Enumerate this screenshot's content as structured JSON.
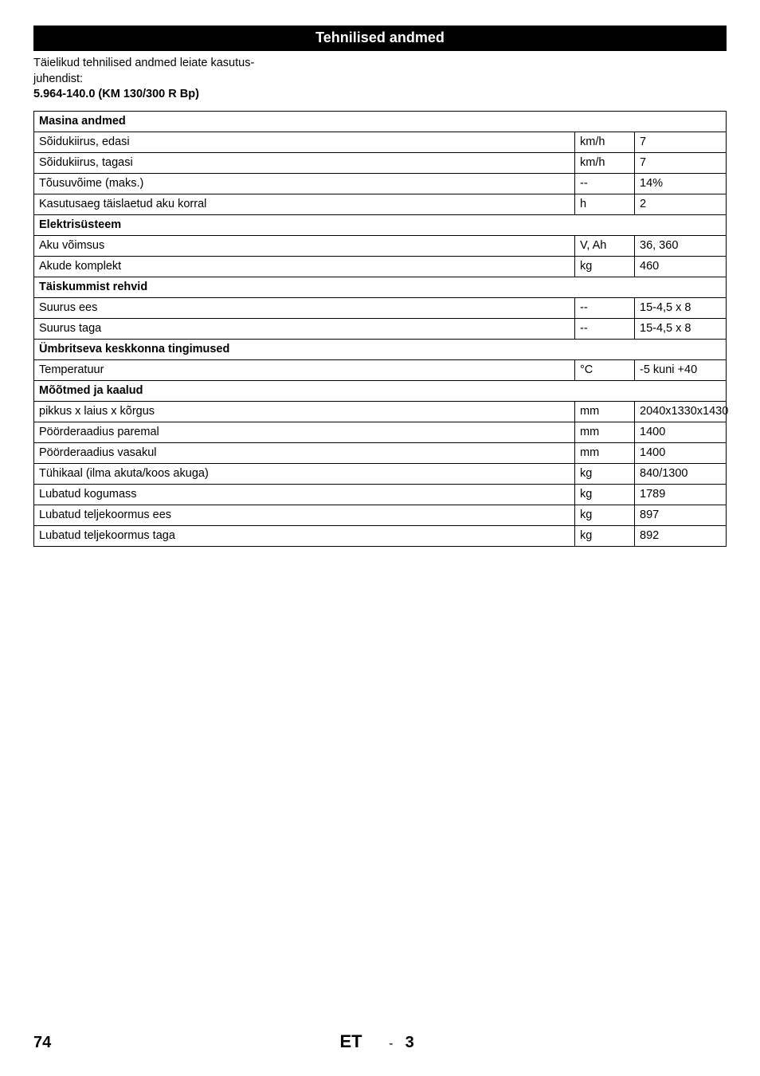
{
  "title": "Tehnilised andmed",
  "intro": {
    "line1": "Täielikud tehnilised andmed leiate kasutus-",
    "line2": "juhendist:",
    "line3_bold": "5.964-140.0 (KM 130/300 R Bp)"
  },
  "table": {
    "rows": [
      {
        "type": "section",
        "label": "Masina andmed"
      },
      {
        "type": "data",
        "label": "Sõidukiirus, edasi",
        "unit": "km/h",
        "value": "7"
      },
      {
        "type": "data",
        "label": "Sõidukiirus, tagasi",
        "unit": "km/h",
        "value": "7"
      },
      {
        "type": "data",
        "label": "Tõusuvõime (maks.)",
        "unit": "--",
        "value": "14%"
      },
      {
        "type": "data",
        "label": "Kasutusaeg täislaetud aku korral",
        "unit": "h",
        "value": "2"
      },
      {
        "type": "section",
        "label": "Elektrisüsteem"
      },
      {
        "type": "data",
        "label": "Aku võimsus",
        "unit": "V, Ah",
        "value": "36, 360"
      },
      {
        "type": "data",
        "label": "Akude komplekt",
        "unit": "kg",
        "value": "460"
      },
      {
        "type": "section",
        "label": "Täiskummist rehvid"
      },
      {
        "type": "data",
        "label": "Suurus ees",
        "unit": "--",
        "value": "15-4,5 x 8"
      },
      {
        "type": "data",
        "label": "Suurus taga",
        "unit": "--",
        "value": "15-4,5 x 8"
      },
      {
        "type": "section",
        "label": "Ümbritseva keskkonna tingimused"
      },
      {
        "type": "data",
        "label": "Temperatuur",
        "unit": "°C",
        "value": "-5 kuni +40"
      },
      {
        "type": "section",
        "label": "Mõõtmed ja kaalud"
      },
      {
        "type": "data",
        "label": "pikkus x laius x kõrgus",
        "unit": "mm",
        "value": "2040x1330x1430"
      },
      {
        "type": "data",
        "label": "Pöörderaadius paremal",
        "unit": "mm",
        "value": "1400"
      },
      {
        "type": "data",
        "label": "Pöörderaadius vasakul",
        "unit": "mm",
        "value": "1400"
      },
      {
        "type": "data",
        "label": "Tühikaal (ilma akuta/koos akuga)",
        "unit": "kg",
        "value": "840/1300"
      },
      {
        "type": "data",
        "label": "Lubatud kogumass",
        "unit": "kg",
        "value": "1789"
      },
      {
        "type": "data",
        "label": "Lubatud teljekoormus ees",
        "unit": "kg",
        "value": "897"
      },
      {
        "type": "data",
        "label": "Lubatud teljekoormus taga",
        "unit": "kg",
        "value": "892"
      }
    ]
  },
  "footer": {
    "page": "74",
    "lang": "ET",
    "dash": "-",
    "sub": "3"
  }
}
